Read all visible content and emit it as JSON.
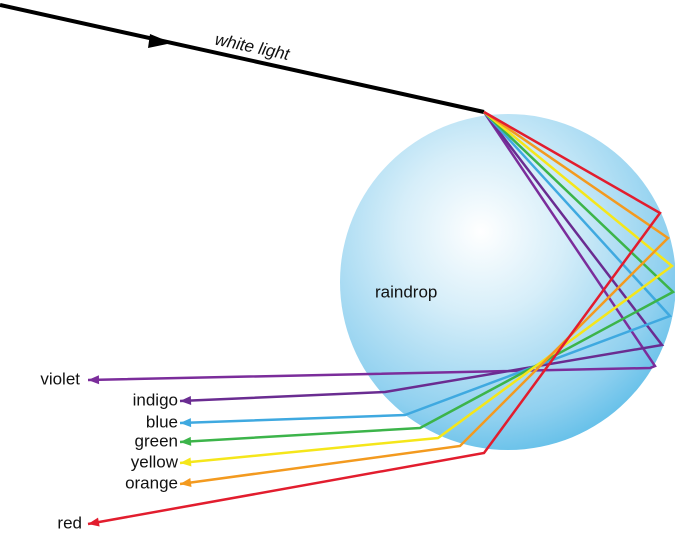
{
  "incoming": {
    "label": "white light"
  },
  "drop": {
    "label": "raindrop"
  },
  "rays": [
    {
      "label": "violet"
    },
    {
      "label": "indigo"
    },
    {
      "label": "blue"
    },
    {
      "label": "green"
    },
    {
      "label": "yellow"
    },
    {
      "label": "orange"
    },
    {
      "label": "red"
    }
  ]
}
